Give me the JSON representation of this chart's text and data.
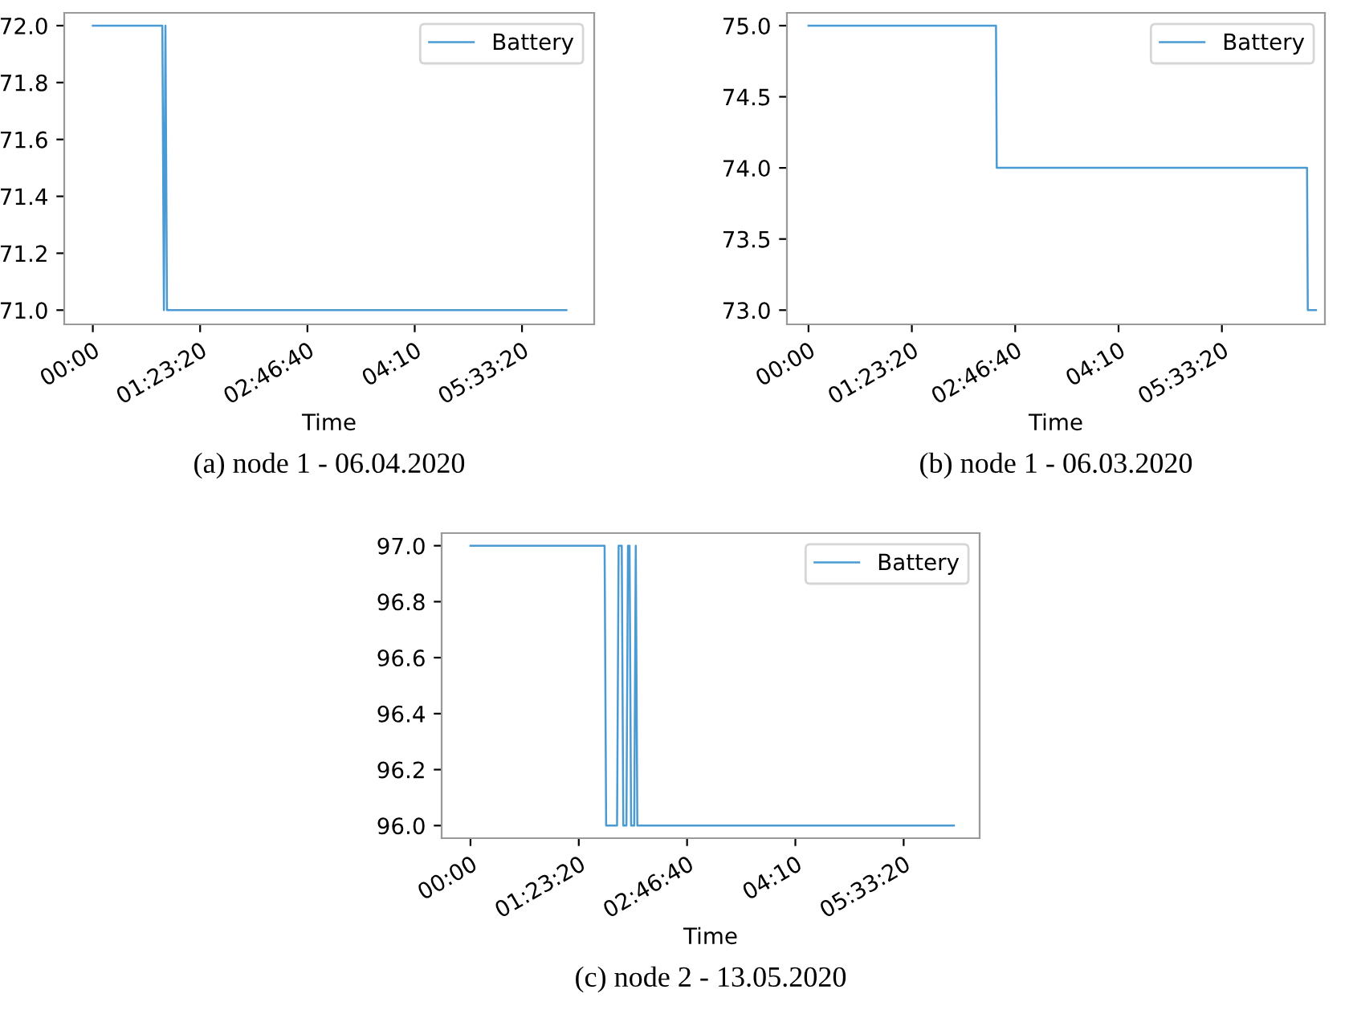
{
  "chart_data": [
    {
      "type": "line",
      "xlabel": "Time",
      "annotations": [
        "(a) node 1 - 06.04.2020"
      ],
      "series": [
        {
          "name": "Battery",
          "color": "#4a9ad4",
          "x": [
            0,
            0.9,
            0.92,
            0.94,
            0.96,
            6.13
          ],
          "values": [
            72,
            72,
            71,
            72,
            71,
            71
          ]
        }
      ],
      "xlim": [
        -0.37,
        6.49
      ],
      "ylim": [
        70.95,
        72.045
      ],
      "xticks": [
        {
          "value": 0,
          "label": "00:00"
        },
        {
          "value": 1.3889,
          "label": "01:23:20"
        },
        {
          "value": 2.7778,
          "label": "02:46:40"
        },
        {
          "value": 4.1667,
          "label": "04:10"
        },
        {
          "value": 5.5556,
          "label": "05:33:20"
        }
      ],
      "yticks": [
        {
          "value": 71.0,
          "label": "71.0"
        },
        {
          "value": 71.2,
          "label": "71.2"
        },
        {
          "value": 71.4,
          "label": "71.4"
        },
        {
          "value": 71.6,
          "label": "71.6"
        },
        {
          "value": 71.8,
          "label": "71.8"
        },
        {
          "value": 72.0,
          "label": "72.0"
        }
      ],
      "legend": "top right",
      "grid": false
    },
    {
      "type": "line",
      "xlabel": "Time",
      "annotations": [
        "(b) node 1 - 06.03.2020"
      ],
      "series": [
        {
          "name": "Battery",
          "color": "#4a9ad4",
          "x": [
            0,
            2.52,
            2.53,
            6.7,
            6.71,
            6.82
          ],
          "values": [
            75,
            75,
            74,
            74,
            73,
            73
          ]
        }
      ],
      "xlim": [
        -0.29,
        6.94
      ],
      "ylim": [
        72.9,
        75.09
      ],
      "xticks": [
        {
          "value": 0,
          "label": "00:00"
        },
        {
          "value": 1.3889,
          "label": "01:23:20"
        },
        {
          "value": 2.7778,
          "label": "02:46:40"
        },
        {
          "value": 4.1667,
          "label": "04:10"
        },
        {
          "value": 5.5556,
          "label": "05:33:20"
        }
      ],
      "yticks": [
        {
          "value": 73.0,
          "label": "73.0"
        },
        {
          "value": 73.5,
          "label": "73.5"
        },
        {
          "value": 74.0,
          "label": "74.0"
        },
        {
          "value": 74.5,
          "label": "74.5"
        },
        {
          "value": 75.0,
          "label": "75.0"
        }
      ],
      "legend": "top right",
      "grid": false
    },
    {
      "type": "line",
      "xlabel": "Time",
      "annotations": [
        "(c) node 2 - 13.05.2020"
      ],
      "series": [
        {
          "name": "Battery",
          "color": "#4a9ad4",
          "x": [
            0,
            1.72,
            1.74,
            1.88,
            1.9,
            1.94,
            1.96,
            2.0,
            2.02,
            2.04,
            2.06,
            2.1,
            2.12,
            2.14,
            6.2
          ],
          "values": [
            97,
            97,
            96,
            96,
            97,
            97,
            96,
            96,
            97,
            97,
            96,
            96,
            97,
            96,
            96
          ]
        }
      ],
      "xlim": [
        -0.37,
        6.53
      ],
      "ylim": [
        95.955,
        97.045
      ],
      "xticks": [
        {
          "value": 0,
          "label": "00:00"
        },
        {
          "value": 1.3889,
          "label": "01:23:20"
        },
        {
          "value": 2.7778,
          "label": "02:46:40"
        },
        {
          "value": 4.1667,
          "label": "04:10"
        },
        {
          "value": 5.5556,
          "label": "05:33:20"
        }
      ],
      "yticks": [
        {
          "value": 96.0,
          "label": "96.0"
        },
        {
          "value": 96.2,
          "label": "96.2"
        },
        {
          "value": 96.4,
          "label": "96.4"
        },
        {
          "value": 96.6,
          "label": "96.6"
        },
        {
          "value": 96.8,
          "label": "96.8"
        },
        {
          "value": 97.0,
          "label": "97.0"
        }
      ],
      "legend": "top right",
      "grid": false
    }
  ]
}
